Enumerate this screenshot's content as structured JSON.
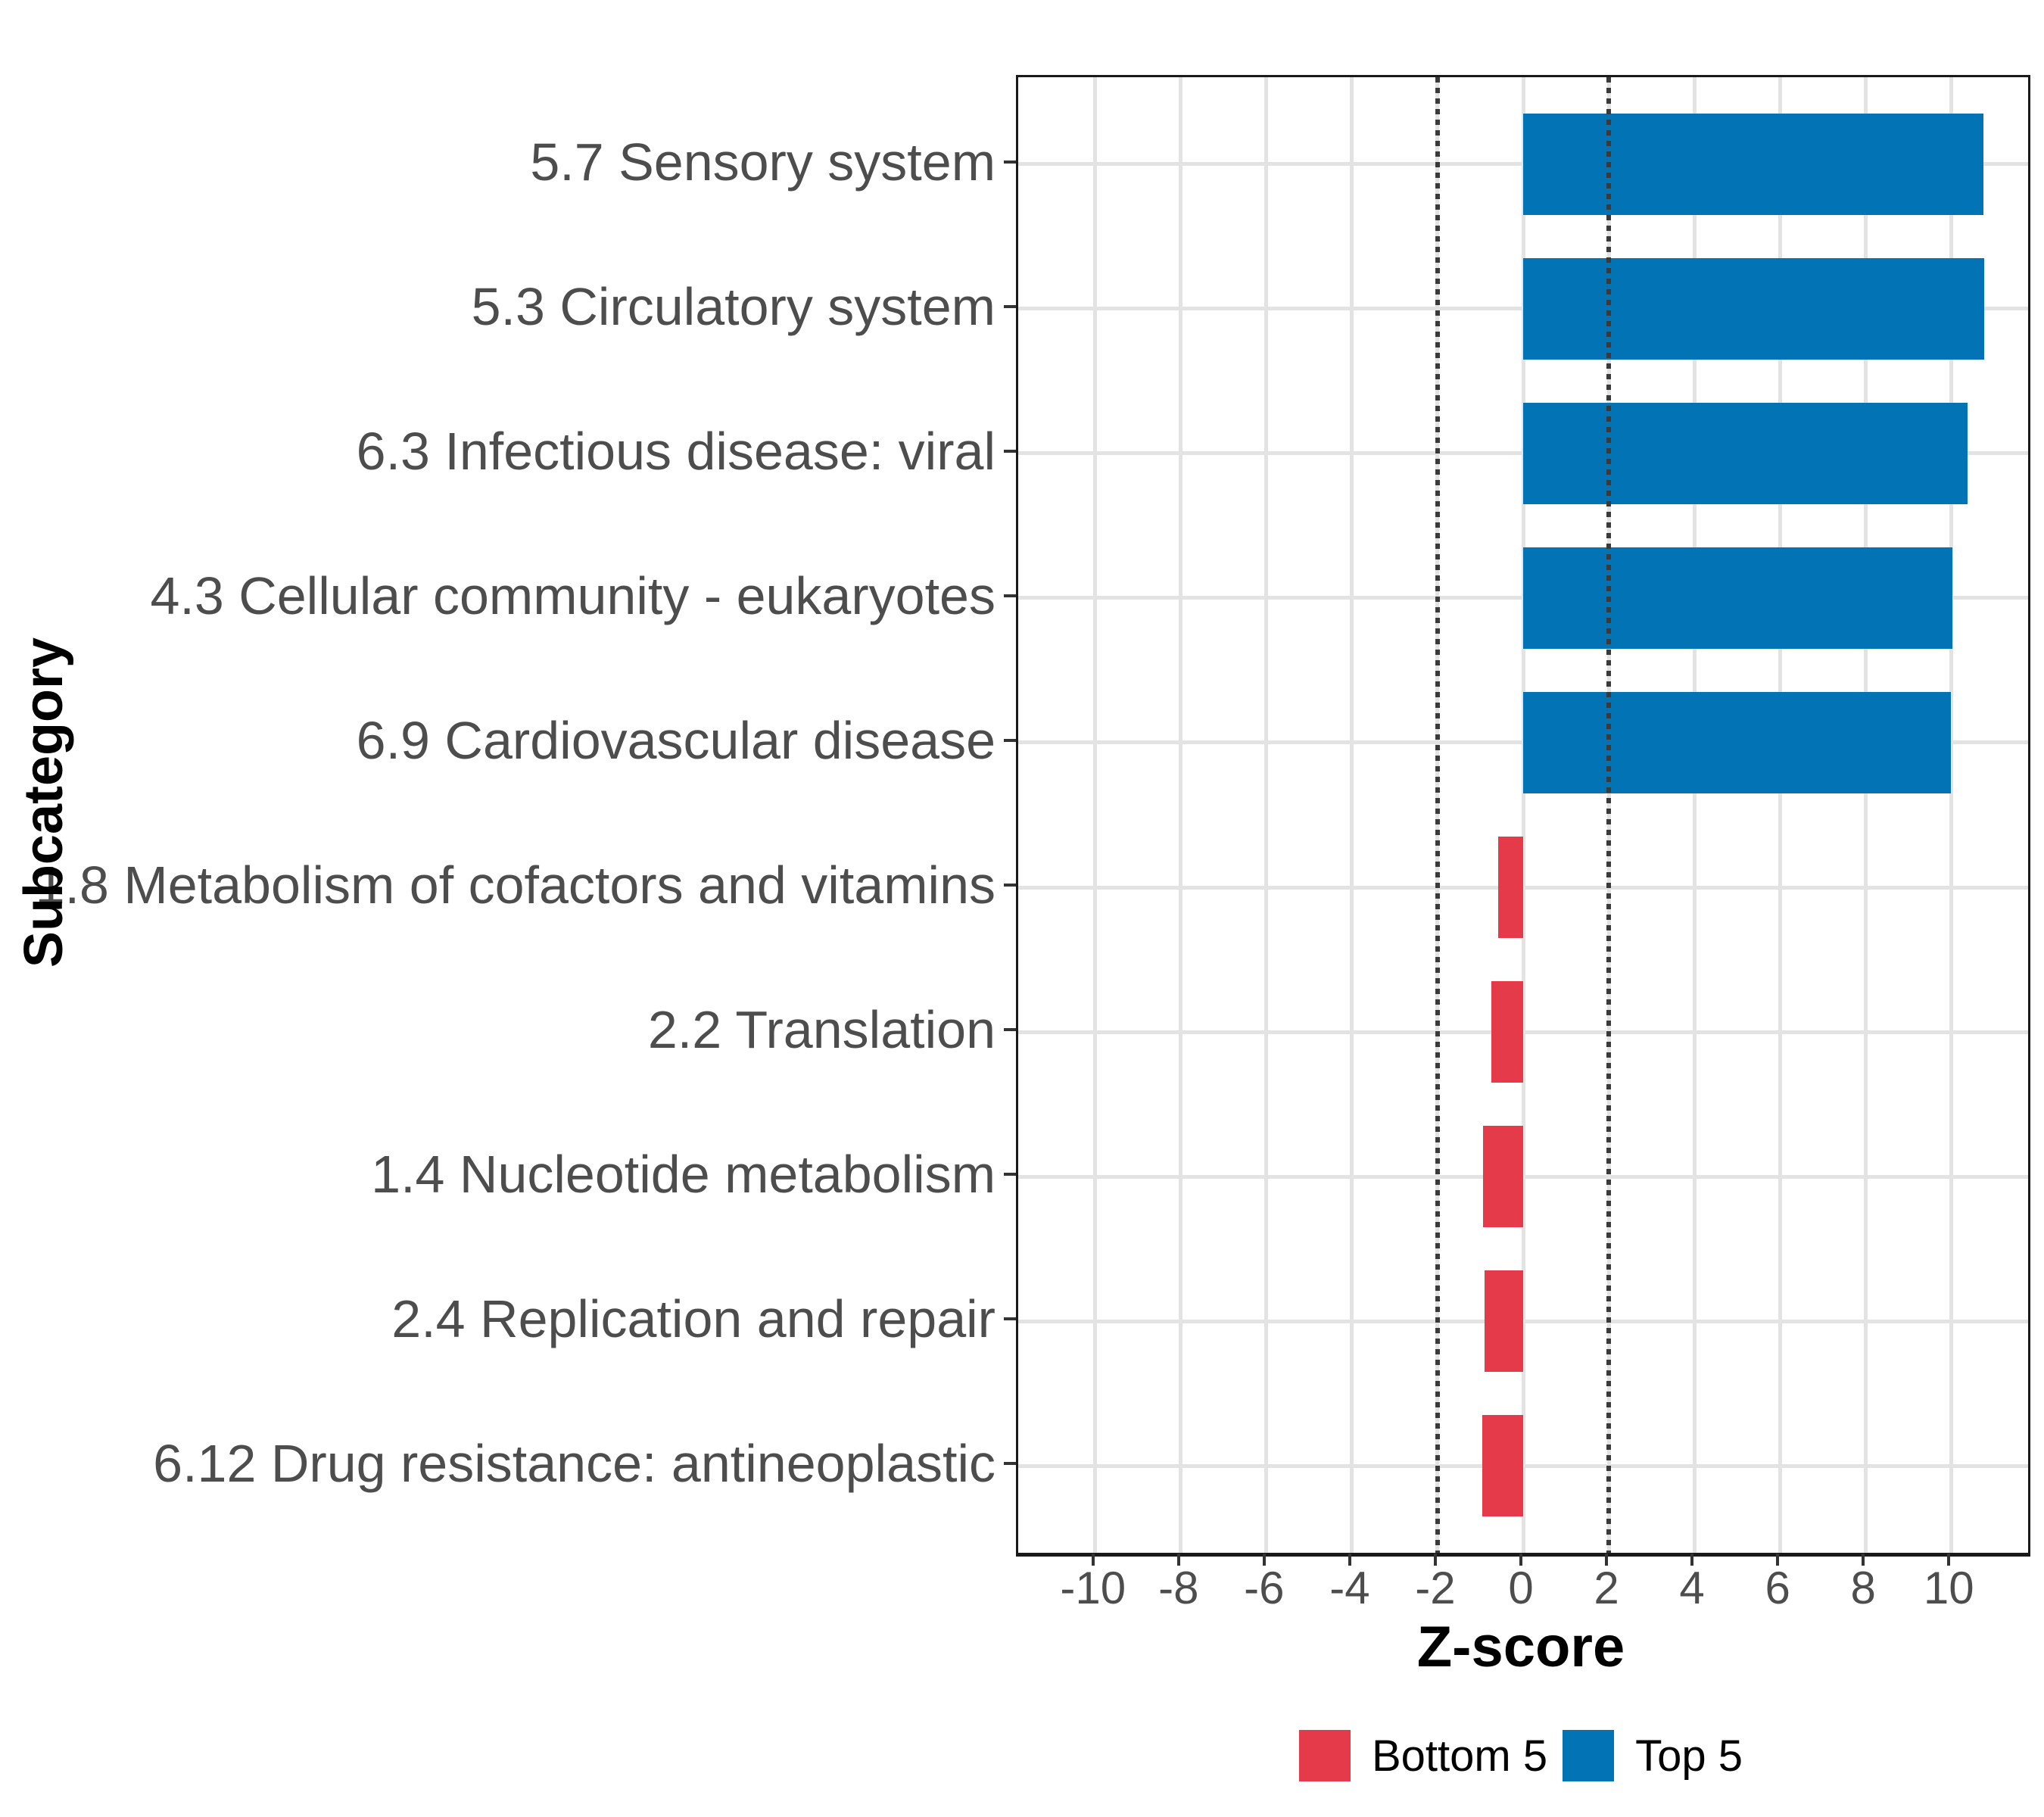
{
  "figure": {
    "background": "#ffffff"
  },
  "chart_data": {
    "type": "bar",
    "orientation": "horizontal",
    "title": "",
    "xlabel": "Z-score",
    "ylabel": "Subcategory",
    "xlim": [
      -11.8,
      11.8
    ],
    "x_ticks": [
      -10,
      -8,
      -6,
      -4,
      -2,
      0,
      2,
      4,
      6,
      8,
      10
    ],
    "reference_lines": [
      -2,
      2
    ],
    "grid": true,
    "legend_position": "bottom",
    "categories": [
      "5.7 Sensory system",
      "5.3 Circulatory system",
      "6.3 Infectious disease: viral",
      "4.3 Cellular community - eukaryotes",
      "6.9 Cardiovascular disease",
      "1.8 Metabolism of cofactors and vitamins",
      "2.2 Translation",
      "1.4 Nucleotide metabolism",
      "2.4 Replication and repair",
      "6.12 Drug resistance: antineoplastic"
    ],
    "series": [
      {
        "name": "Z-score",
        "values": [
          10.76,
          10.77,
          10.39,
          10.03,
          9.99,
          -0.59,
          -0.75,
          -0.93,
          -0.91,
          -0.95
        ],
        "groups": [
          "Top 5",
          "Top 5",
          "Top 5",
          "Top 5",
          "Top 5",
          "Bottom 5",
          "Bottom 5",
          "Bottom 5",
          "Bottom 5",
          "Bottom 5"
        ]
      }
    ],
    "legend": {
      "entries": [
        {
          "label": "Bottom 5",
          "color": "#e43a4a"
        },
        {
          "label": "Top 5",
          "color": "#0274b6"
        }
      ]
    },
    "colors": {
      "grid": "#e3e3e3",
      "reference_line": "#3a3a3a",
      "axis_text": "#4d4d4d",
      "axis_title": "#000000",
      "panel_border": "#1a1a1a"
    }
  }
}
